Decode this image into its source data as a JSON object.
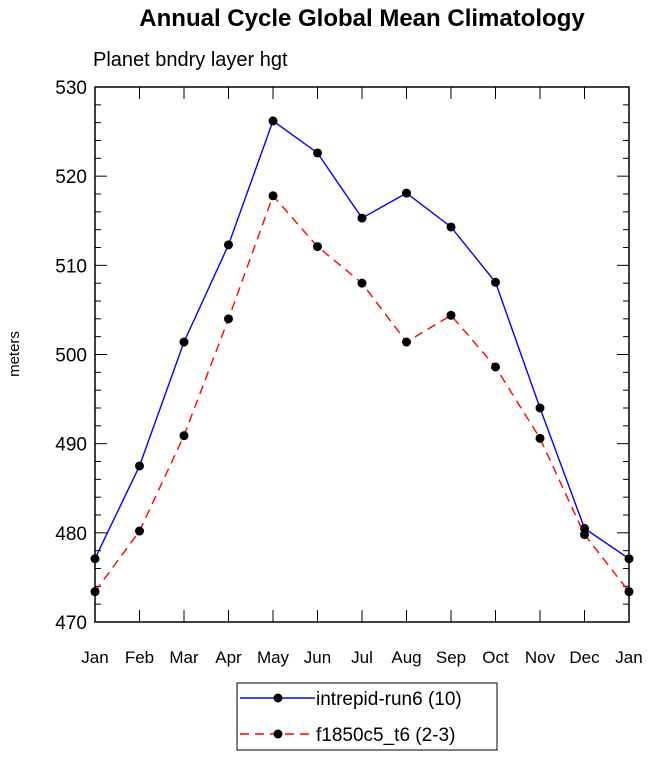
{
  "chart_data": {
    "type": "line",
    "title": "Annual Cycle Global Mean Climatology",
    "subtitle": "Planet bndry layer hgt",
    "xlabel": "",
    "ylabel": "meters",
    "categories": [
      "Jan",
      "Feb",
      "Mar",
      "Apr",
      "May",
      "Jun",
      "Jul",
      "Aug",
      "Sep",
      "Oct",
      "Nov",
      "Dec",
      "Jan"
    ],
    "ylim": [
      470,
      530
    ],
    "yticks": [
      470,
      480,
      490,
      500,
      510,
      520,
      530
    ],
    "grid": false,
    "legend_position": "bottom-center",
    "series": [
      {
        "name": "intrepid-run6 (10)",
        "color": "#0000ff",
        "dash": "solid",
        "values": [
          477.1,
          487.5,
          501.4,
          512.3,
          526.2,
          522.6,
          515.3,
          518.1,
          514.3,
          508.1,
          494.0,
          480.5,
          477.1
        ]
      },
      {
        "name": "f1850c5_t6 (2-3)",
        "color": "#ff0000",
        "dash": "dashed",
        "values": [
          473.4,
          480.2,
          490.9,
          504.0,
          517.8,
          512.1,
          508.0,
          501.4,
          504.4,
          498.6,
          490.6,
          479.8,
          473.4
        ]
      }
    ]
  }
}
